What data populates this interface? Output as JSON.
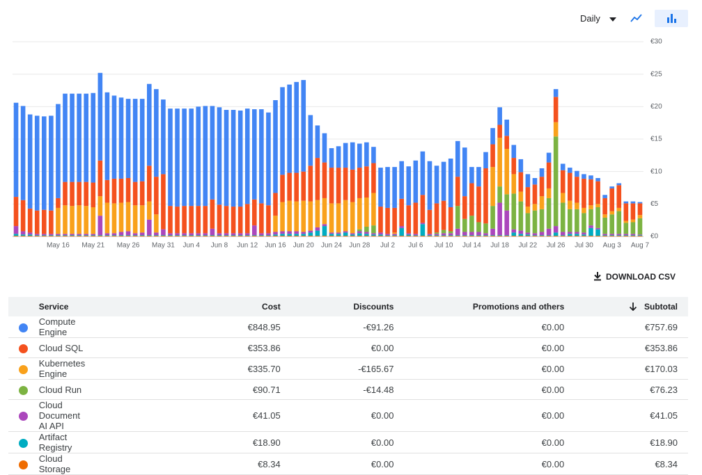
{
  "chart_data": {
    "type": "stacked-bar",
    "ylim": [
      0,
      30
    ],
    "yticks": [
      {
        "value": 0,
        "label": "€0"
      },
      {
        "value": 5,
        "label": "€5"
      },
      {
        "value": 10,
        "label": "€10"
      },
      {
        "value": 15,
        "label": "€15"
      },
      {
        "value": 20,
        "label": "€20"
      },
      {
        "value": 25,
        "label": "€25"
      },
      {
        "value": 30,
        "label": "€30"
      }
    ],
    "grid": true,
    "categories": [
      null,
      null,
      null,
      null,
      null,
      null,
      "May 16",
      null,
      null,
      null,
      null,
      "May 21",
      null,
      null,
      null,
      null,
      "May 26",
      null,
      null,
      null,
      null,
      "May 31",
      null,
      null,
      null,
      "Jun 4",
      null,
      null,
      null,
      "Jun 8",
      null,
      null,
      null,
      "Jun 12",
      null,
      null,
      null,
      "Jun 16",
      null,
      null,
      null,
      "Jun 20",
      null,
      null,
      null,
      "Jun 24",
      null,
      null,
      null,
      "Jun 28",
      null,
      null,
      null,
      "Jul 2",
      null,
      null,
      null,
      "Jul 6",
      null,
      null,
      null,
      "Jul 10",
      null,
      null,
      null,
      "Jul 14",
      null,
      null,
      null,
      "Jul 18",
      null,
      null,
      null,
      "Jul 22",
      null,
      null,
      null,
      "Jul 26",
      null,
      null,
      null,
      "Jul 30",
      null,
      null,
      null,
      "Aug 3",
      null,
      null,
      null,
      "Aug 7"
    ],
    "series": [
      {
        "name": "Compute Engine",
        "color": "#4285f4",
        "values": [
          14.5,
          14.5,
          14.5,
          14.6,
          14.4,
          14.6,
          14.5,
          13.6,
          13.6,
          13.6,
          13.6,
          13.8,
          13.5,
          13.5,
          12.8,
          12.5,
          12.2,
          12.8,
          12.7,
          12.6,
          13.5,
          11.5,
          15,
          15.1,
          15,
          15,
          15.3,
          15.4,
          14.4,
          15,
          14.8,
          14.9,
          14.8,
          14.7,
          13.9,
          14.5,
          14.3,
          14.3,
          13.5,
          13.6,
          14,
          14.1,
          7.8,
          5,
          4.5,
          3,
          3.3,
          3.8,
          4.2,
          3.7,
          3.7,
          2.5,
          6,
          6.3,
          6.3,
          5.8,
          6,
          6.5,
          6.7,
          7.5,
          5.8,
          6,
          7.5,
          5.5,
          7.5,
          2.5,
          3,
          2.5,
          2.5,
          2.7,
          2.5,
          2,
          2,
          2,
          1,
          1.3,
          1.5,
          1.2,
          1,
          0.8,
          0.9,
          0.7,
          0.6,
          0.5,
          0.5,
          0.3,
          0.3,
          0.3,
          0.3,
          0.2
        ]
      },
      {
        "name": "Cloud SQL",
        "color": "#f4511e",
        "values": [
          4.5,
          4.8,
          3.7,
          3.6,
          3.7,
          3.6,
          1.5,
          3.6,
          3.7,
          3.6,
          3.7,
          3.8,
          5.5,
          3.5,
          3.8,
          3.7,
          3.7,
          3.6,
          3.7,
          5.5,
          5.8,
          8.5,
          4.2,
          4.1,
          4.2,
          4.2,
          4.2,
          4.2,
          4.5,
          4.4,
          4.2,
          4.1,
          4.1,
          4.5,
          4,
          4.6,
          4.3,
          3.5,
          4.2,
          4.3,
          4.4,
          4.5,
          5.5,
          6.5,
          5.5,
          5.5,
          5.5,
          5,
          5,
          4.7,
          4.8,
          4.6,
          4,
          4,
          3.8,
          4.2,
          4.3,
          4.8,
          4.3,
          3.7,
          4.5,
          4.5,
          3.7,
          4.5,
          3.5,
          5,
          5.5,
          8.5,
          3.5,
          2,
          2,
          2.5,
          3,
          3,
          3,
          3,
          4,
          3.9,
          3.5,
          4.3,
          4,
          4.5,
          4,
          3.5,
          2.5,
          3.5,
          3.5,
          2.7,
          2.5,
          1.8
        ]
      },
      {
        "name": "Kubernetes Engine",
        "color": "#f9a11b",
        "values": [
          0,
          0,
          0,
          0,
          0,
          0,
          4,
          4.4,
          4.3,
          4.4,
          4.3,
          4.1,
          3,
          4.7,
          4.6,
          4.5,
          4.5,
          4.3,
          4.2,
          2.8,
          2.8,
          0,
          0,
          0,
          0,
          0,
          0,
          0,
          0,
          0,
          0,
          0,
          0,
          0,
          0,
          0,
          0,
          2.5,
          4.5,
          4.7,
          4.6,
          4.8,
          4.5,
          4.2,
          4,
          4.5,
          4.5,
          4.8,
          4.8,
          4.8,
          4.5,
          5,
          0,
          0,
          0.2,
          0,
          0,
          0,
          0,
          0,
          0,
          0,
          0,
          0,
          0,
          0,
          0,
          0,
          6,
          7.5,
          7,
          3,
          1.5,
          1,
          1,
          2,
          1.5,
          2.2,
          1.5,
          1.3,
          1,
          0.8,
          0.6,
          0.5,
          0.5,
          0.5,
          0.5,
          0.3,
          0.4,
          0.5
        ]
      },
      {
        "name": "Cloud Run",
        "color": "#7cb342",
        "values": [
          0,
          0,
          0,
          0,
          0,
          0,
          0,
          0,
          0,
          0,
          0,
          0,
          0,
          0,
          0,
          0,
          0,
          0,
          0,
          0,
          0,
          0,
          0,
          0,
          0,
          0,
          0,
          0,
          0,
          0,
          0,
          0,
          0,
          0,
          0,
          0,
          0,
          0,
          0,
          0,
          0,
          0,
          0,
          0,
          0,
          0,
          0,
          0,
          0,
          0.3,
          0.8,
          1.2,
          0,
          0,
          0,
          0,
          0,
          0,
          0,
          0,
          0.2,
          0.5,
          0.3,
          3.5,
          2,
          2.5,
          1.5,
          1.5,
          3.5,
          2.5,
          2.5,
          5.5,
          4.5,
          3,
          3.5,
          3.5,
          4.7,
          13.8,
          4.5,
          3.5,
          3.5,
          3,
          2.5,
          3.2,
          2.5,
          3,
          3.5,
          1.7,
          1.8,
          2.5
        ]
      },
      {
        "name": "Cloud Document AI API",
        "color": "#ab47bc",
        "values": [
          1.2,
          0.5,
          0.3,
          0.2,
          0.2,
          0.2,
          0.2,
          0.2,
          0.2,
          0.2,
          0.2,
          0.2,
          3,
          0.3,
          0.3,
          0.5,
          0.6,
          0.3,
          0.4,
          2.4,
          0.4,
          0.9,
          0.3,
          0.3,
          0.3,
          0.3,
          0.3,
          0.3,
          1,
          0.3,
          0.3,
          0.3,
          0.3,
          0.3,
          1.5,
          0.3,
          0.3,
          0.4,
          0.4,
          0.4,
          0.4,
          0.3,
          0.3,
          0.5,
          0.3,
          0.2,
          0.2,
          0.2,
          0.2,
          0.3,
          0.3,
          0.2,
          0.3,
          0.2,
          0.2,
          0.3,
          0.2,
          0.2,
          0.2,
          0.2,
          0.2,
          0.3,
          0.3,
          1,
          0.5,
          0.5,
          0.5,
          0.3,
          1,
          5,
          3.8,
          0.5,
          0.5,
          0.3,
          0.3,
          0.5,
          1,
          1,
          0.5,
          0.3,
          0.3,
          0.3,
          0.4,
          0.2,
          0.2,
          0.2,
          0.2,
          0.2,
          0.2,
          0.1
        ]
      },
      {
        "name": "Artifact Registry",
        "color": "#00acc1",
        "values": [
          0.3,
          0.2,
          0.2,
          0.1,
          0.1,
          0.1,
          0.1,
          0.1,
          0.1,
          0.1,
          0.1,
          0.1,
          0.1,
          0.1,
          0.1,
          0.1,
          0.1,
          0.1,
          0.1,
          0.1,
          0.1,
          0.1,
          0.1,
          0.1,
          0.1,
          0.1,
          0.1,
          0.1,
          0.1,
          0.1,
          0.1,
          0.1,
          0.1,
          0.1,
          0.1,
          0.1,
          0.1,
          0.2,
          0.3,
          0.3,
          0.3,
          0.3,
          0.5,
          0.8,
          1.5,
          0.3,
          0.3,
          0.5,
          0.2,
          0.4,
          0.3,
          0.2,
          0.2,
          0.1,
          0.1,
          1.2,
          0.2,
          0.1,
          1.8,
          0.1,
          0.1,
          0.1,
          0.1,
          0.1,
          0.1,
          0.1,
          0.1,
          0.1,
          0.1,
          0.1,
          0.1,
          0.5,
          0.3,
          0.2,
          0.1,
          0.1,
          0.1,
          0.5,
          0.1,
          0.3,
          0.3,
          0.2,
          1.2,
          1,
          0.1,
          0.1,
          0.1,
          0.1,
          0.1,
          0.1
        ]
      },
      {
        "name": "Cloud Storage",
        "color": "#ef6c00",
        "values": [
          0.1,
          0.1,
          0.1,
          0.1,
          0.1,
          0.1,
          0.1,
          0.1,
          0.1,
          0.1,
          0.1,
          0.1,
          0.1,
          0.1,
          0.1,
          0.1,
          0.1,
          0.1,
          0.1,
          0.1,
          0.1,
          0.1,
          0.1,
          0.1,
          0.1,
          0.1,
          0.1,
          0.1,
          0.1,
          0.1,
          0.1,
          0.1,
          0.1,
          0.1,
          0.1,
          0.1,
          0.1,
          0.1,
          0.1,
          0.1,
          0.1,
          0.1,
          0.1,
          0.1,
          0.1,
          0.1,
          0.1,
          0.1,
          0.1,
          0.1,
          0.1,
          0.1,
          0.1,
          0.1,
          0.1,
          0.1,
          0.1,
          0.1,
          0.1,
          0.1,
          0.1,
          0.1,
          0.1,
          0.1,
          0.1,
          0.1,
          0.1,
          0.1,
          0.1,
          0.1,
          0.1,
          0.1,
          0.1,
          0.1,
          0.1,
          0.1,
          0.1,
          0.1,
          0.1,
          0.1,
          0.1,
          0.1,
          0.1,
          0.1,
          0.1,
          0.1,
          0.1,
          0.1,
          0.1,
          0.1
        ]
      }
    ]
  },
  "controls": {
    "period": "Daily",
    "download": "DOWNLOAD CSV"
  },
  "table": {
    "headers": [
      "Service",
      "Cost",
      "Discounts",
      "Promotions and others",
      "Subtotal"
    ],
    "rows": [
      [
        "Compute Engine",
        "€848.95",
        "-€91.26",
        "€0.00",
        "€757.69"
      ],
      [
        "Cloud SQL",
        "€353.86",
        "€0.00",
        "€0.00",
        "€353.86"
      ],
      [
        "Kubernetes Engine",
        "€335.70",
        "-€165.67",
        "€0.00",
        "€170.03"
      ],
      [
        "Cloud Run",
        "€90.71",
        "-€14.48",
        "€0.00",
        "€76.23"
      ],
      [
        "Cloud Document AI API",
        "€41.05",
        "€0.00",
        "€0.00",
        "€41.05"
      ],
      [
        "Artifact Registry",
        "€18.90",
        "€0.00",
        "€0.00",
        "€18.90"
      ],
      [
        "Cloud Storage",
        "€8.34",
        "€0.00",
        "€0.00",
        "€8.34"
      ]
    ]
  }
}
